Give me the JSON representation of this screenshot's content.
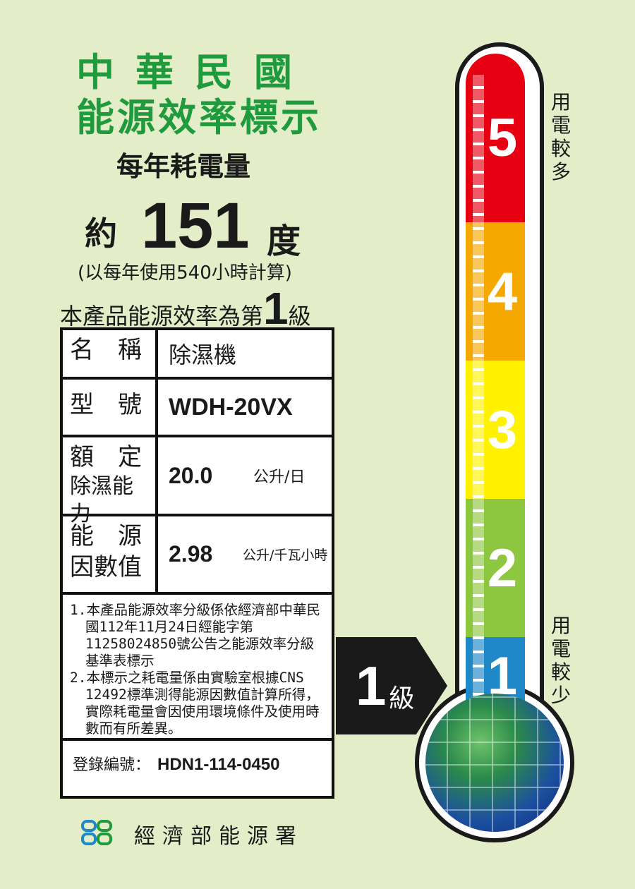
{
  "header": {
    "line1": "中華民國",
    "line2": "能源效率標示",
    "subtitle": "每年耗電量"
  },
  "consumption": {
    "prefix": "約",
    "value": "151",
    "unit": "度",
    "note": "(以每年使用540小時計算)"
  },
  "grade_statement": {
    "text": "本產品能源效率為第",
    "grade": "1",
    "suffix": "級"
  },
  "table": {
    "name_label": "名　稱",
    "name_value": "除濕機",
    "model_label": "型　號",
    "model_value": "WDH-20VX",
    "capacity_label_1": "額　定",
    "capacity_label_2": "除濕能力",
    "capacity_value": "20.0",
    "capacity_unit": "公升/日",
    "factor_label_1": "能　源",
    "factor_label_2": "因數值",
    "factor_value": "2.98",
    "factor_unit": "公升/千瓦小時",
    "notes": [
      "1.本產品能源效率分級係依經濟部中華民國112年11月24日經能字第11258024850號公告之能源效率分級基準表標示",
      "2.本標示之耗電量係由實驗室根據CNS 12492標準測得能源因數值計算所得，實際耗電量會因使用環境條件及使用時數而有所差異。"
    ],
    "reg_label": "登錄編號：",
    "reg_value": "HDN1-114-0450"
  },
  "scale": {
    "levels": [
      {
        "label": "5",
        "color": "#e60012"
      },
      {
        "label": "4",
        "color": "#f5a800"
      },
      {
        "label": "3",
        "color": "#fff100"
      },
      {
        "label": "2",
        "color": "#8dc63f"
      },
      {
        "label": "1",
        "color": "#1e88c8"
      }
    ],
    "more": "用電較多",
    "less": "用電較少",
    "current": "1",
    "current_label": "級"
  },
  "footer": {
    "agency": "經濟部能源署"
  }
}
